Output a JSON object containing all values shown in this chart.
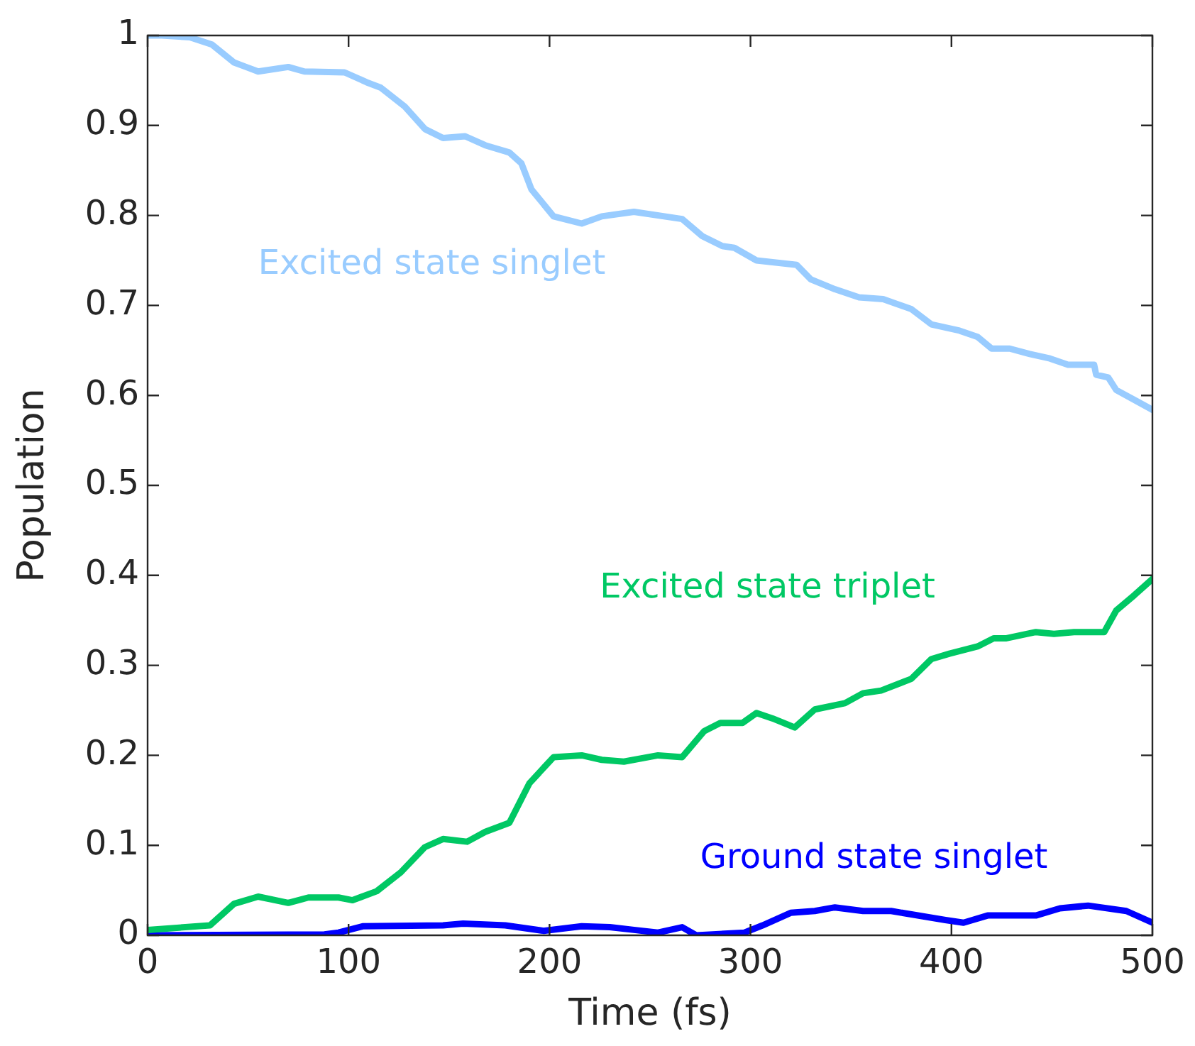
{
  "chart_data": {
    "type": "line",
    "xlabel": "Time (fs)",
    "ylabel": "Population",
    "xlim": [
      0,
      500
    ],
    "ylim": [
      0,
      1
    ],
    "xticks": [
      0,
      100,
      200,
      300,
      400,
      500
    ],
    "yticks": [
      0,
      0.1,
      0.2,
      0.3,
      0.4,
      0.5,
      0.6,
      0.7,
      0.8,
      0.9,
      1
    ],
    "grid": false,
    "legend": false,
    "marker": "none",
    "line_style": "solid",
    "series": [
      {
        "name": "Excited state singlet",
        "color": "#99ccff",
        "x": [
          0,
          7,
          21,
          32,
          43,
          49,
          55,
          70,
          78,
          98,
          109,
          116,
          128,
          138,
          147,
          158,
          168,
          180,
          186,
          191,
          202,
          216,
          226,
          242,
          266,
          276,
          286,
          292,
          303,
          323,
          330,
          342,
          354,
          366,
          380,
          390,
          404,
          413,
          420,
          429,
          439,
          449,
          458,
          471,
          472,
          478,
          482,
          491,
          500
        ],
        "values": [
          1.0,
          1.0,
          0.998,
          0.99,
          0.97,
          0.965,
          0.96,
          0.965,
          0.96,
          0.959,
          0.948,
          0.942,
          0.921,
          0.896,
          0.886,
          0.888,
          0.878,
          0.87,
          0.858,
          0.829,
          0.799,
          0.791,
          0.799,
          0.804,
          0.796,
          0.777,
          0.766,
          0.764,
          0.75,
          0.745,
          0.729,
          0.718,
          0.709,
          0.707,
          0.696,
          0.679,
          0.672,
          0.665,
          0.652,
          0.652,
          0.646,
          0.641,
          0.634,
          0.634,
          0.623,
          0.62,
          0.606,
          0.595,
          0.584
        ]
      },
      {
        "name": "Excited state triplet",
        "color": "#00c864",
        "x": [
          0,
          31,
          43,
          55,
          70,
          80,
          95,
          102,
          114,
          126,
          138,
          147,
          159,
          168,
          180,
          190,
          202,
          216,
          226,
          237,
          254,
          266,
          277,
          285,
          296,
          303,
          311,
          322,
          332,
          347,
          356,
          365,
          380,
          390,
          399,
          413,
          421,
          427,
          442,
          451,
          461,
          476,
          482,
          491,
          500
        ],
        "values": [
          0.006,
          0.011,
          0.035,
          0.043,
          0.036,
          0.042,
          0.042,
          0.039,
          0.049,
          0.07,
          0.098,
          0.107,
          0.104,
          0.115,
          0.125,
          0.169,
          0.198,
          0.2,
          0.195,
          0.193,
          0.2,
          0.198,
          0.227,
          0.236,
          0.236,
          0.247,
          0.241,
          0.231,
          0.251,
          0.258,
          0.269,
          0.272,
          0.285,
          0.307,
          0.313,
          0.321,
          0.33,
          0.33,
          0.337,
          0.335,
          0.337,
          0.337,
          0.361,
          0.378,
          0.396
        ]
      },
      {
        "name": "Ground state singlet",
        "color": "#0000ff",
        "x": [
          0,
          88,
          95,
          107,
          147,
          157,
          178,
          197,
          216,
          230,
          242,
          254,
          266,
          273,
          297,
          306,
          320,
          332,
          342,
          356,
          370,
          397,
          406,
          418,
          442,
          454,
          468,
          487,
          500
        ],
        "values": [
          0,
          0.001,
          0.003,
          0.01,
          0.011,
          0.013,
          0.011,
          0.005,
          0.01,
          0.009,
          0.006,
          0.003,
          0.009,
          0,
          0.003,
          0.011,
          0.025,
          0.027,
          0.031,
          0.027,
          0.027,
          0.017,
          0.014,
          0.022,
          0.022,
          0.03,
          0.033,
          0.027,
          0.014
        ]
      }
    ]
  }
}
